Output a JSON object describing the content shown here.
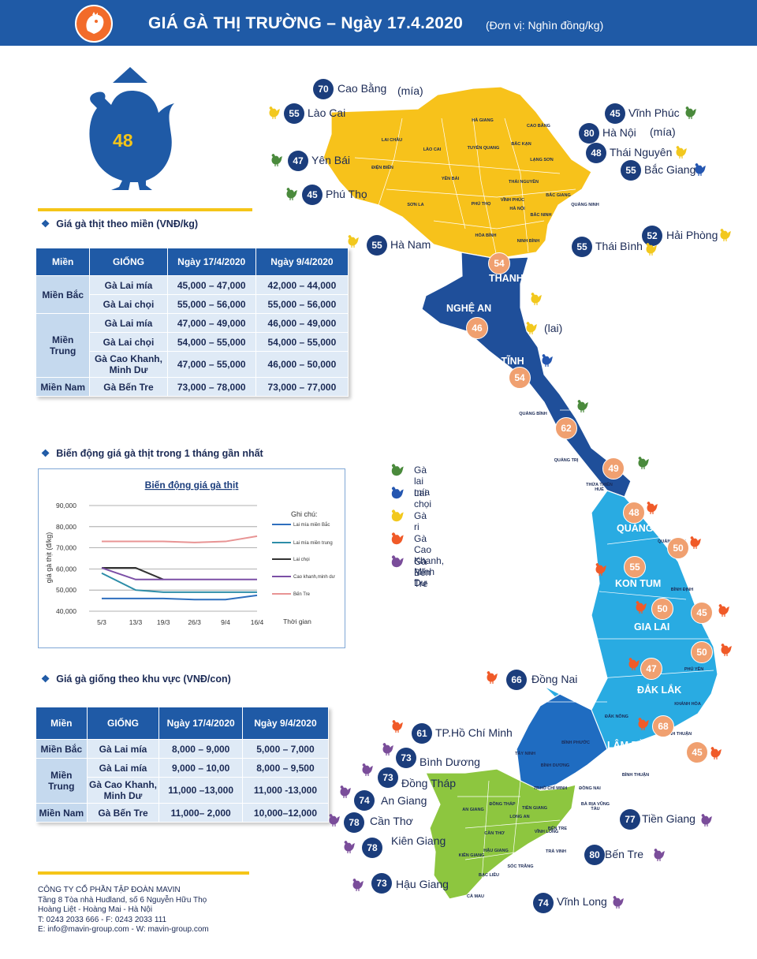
{
  "header": {
    "title": "GIÁ GÀ THỊ TRƯỜNG – Ngày 17.4.2020",
    "unit": "(Đơn vị: Nghìn đồng/kg)",
    "national_price": "48"
  },
  "sections": {
    "meat_by_region": "Giá gà thịt theo miền (VNĐ/kg)",
    "trend": "Biến động giá gà thịt trong 1 tháng gần nhất",
    "breed_by_region": "Giá gà giống theo khu vực (VNĐ/con)"
  },
  "table1": {
    "headers": [
      "Miền",
      "GIỐNG",
      "Ngày 17/4/2020",
      "Ngày 9/4/2020"
    ],
    "regions": [
      {
        "name": "Miền Bắc",
        "rows": [
          {
            "breed": "Gà Lai mía",
            "d1": "45,000 – 47,000",
            "d2": "42,000 – 44,000"
          },
          {
            "breed": "Gà Lai chọi",
            "d1": "55,000 – 56,000",
            "d2": "55,000 – 56,000"
          }
        ]
      },
      {
        "name": "Miền Trung",
        "rows": [
          {
            "breed": "Gà Lai mía",
            "d1": "47,000 – 49,000",
            "d2": "46,000 – 49,000"
          },
          {
            "breed": "Gà Lai chọi",
            "d1": "54,000 – 55,000",
            "d2": "54,000 – 55,000"
          },
          {
            "breed": "Gà Cao Khanh, Minh Dư",
            "d1": "47,000 – 55,000",
            "d2": "46,000 – 50,000"
          }
        ]
      },
      {
        "name": "Miền Nam",
        "rows": [
          {
            "breed": "Gà Bến Tre",
            "d1": "73,000 – 78,000",
            "d2": "73,000 – 77,000"
          }
        ]
      }
    ]
  },
  "table2": {
    "headers": [
      "Miền",
      "GIỐNG",
      "Ngày 17/4/2020",
      "Ngày 9/4/2020"
    ],
    "regions": [
      {
        "name": "Miền Bắc",
        "rows": [
          {
            "breed": "Gà Lai mía",
            "d1": "8,000 – 9,000",
            "d2": "5,000 – 7,000"
          }
        ]
      },
      {
        "name": "Miền Trung",
        "rows": [
          {
            "breed": "Gà Lai mía",
            "d1": "9,000 – 10,00",
            "d2": "8,000 – 9,500"
          },
          {
            "breed": "Gà Cao Khanh, Minh Dư",
            "d1": "11,000 –13,000",
            "d2": "11,000 -13,000"
          }
        ]
      },
      {
        "name": "Miền Nam",
        "rows": [
          {
            "breed": "Gà Bến Tre",
            "d1": "11,000– 2,000",
            "d2": "10,000–12,000"
          }
        ]
      }
    ]
  },
  "chart_data": {
    "type": "line",
    "title": "Biến động giá gà thịt",
    "xlabel": "Thời gian",
    "ylabel": "giá gà thịt (đ/kg)",
    "legend_title": "Ghi chú:",
    "legend_position": "right",
    "categories": [
      "5/3",
      "13/3",
      "19/3",
      "26/3",
      "9/4",
      "16/4"
    ],
    "yticks": [
      "40,000",
      "50,000",
      "60,000",
      "70,000",
      "80,000",
      "90,000"
    ],
    "ylim": [
      40000,
      90000
    ],
    "grid": true,
    "x_pos": [
      0,
      1.44,
      2.62,
      3.94,
      5.26,
      6.6
    ],
    "series": [
      {
        "name": "Lai mía miền Bắc",
        "color": "#2f6fbe",
        "x": [
          0,
          1.44,
          2.62,
          3.94,
          5.26,
          6.6
        ],
        "values": [
          46000,
          46000,
          46000,
          45500,
          45500,
          47500
        ]
      },
      {
        "name": "Lai mía miền trung",
        "color": "#2d8da8",
        "x": [
          0,
          1.44,
          2.62,
          3.94,
          5.26,
          6.6
        ],
        "values": [
          58000,
          50000,
          49000,
          49000,
          49000,
          49000
        ]
      },
      {
        "name": "Lai chọi",
        "color": "#333333",
        "x": [
          0,
          1.44,
          2.62
        ],
        "values": [
          60500,
          60500,
          55000
        ]
      },
      {
        "name": "Cao khanh,minh dư",
        "color": "#7b4fa6",
        "x": [
          0,
          1.44,
          2.62,
          3.94,
          5.26,
          6.6
        ],
        "values": [
          60500,
          55000,
          55000,
          55000,
          55000,
          55000
        ]
      },
      {
        "name": "Bến Tre",
        "color": "#e89494",
        "x": [
          0,
          1.44,
          2.62,
          3.94,
          5.26,
          6.6
        ],
        "values": [
          73000,
          73000,
          73000,
          72500,
          73000,
          75500
        ]
      }
    ]
  },
  "map": {
    "north_prices": [
      {
        "v": "70",
        "label": "Cao Bằng",
        "note": "(mía)"
      },
      {
        "v": "55",
        "label": "Lào Cai"
      },
      {
        "v": "45",
        "label": "Vĩnh Phúc"
      },
      {
        "v": "80",
        "label": "Hà Nội",
        "note": "(mía)"
      },
      {
        "v": "48",
        "label": "Thái Nguyên"
      },
      {
        "v": "55",
        "label": "Bắc Giang"
      },
      {
        "v": "47",
        "label": "Yên Bái"
      },
      {
        "v": "45",
        "label": "Phú Thọ"
      },
      {
        "v": "52",
        "label": "Hải Phòng"
      },
      {
        "v": "55",
        "label": "Hà Nam"
      },
      {
        "v": "55",
        "label": "Thái Bình"
      }
    ],
    "south_prices": [
      {
        "v": "66",
        "label": "Đồng Nai"
      },
      {
        "v": "61",
        "label": "TP.Hồ Chí Minh"
      },
      {
        "v": "73",
        "label": "Bình Dương"
      },
      {
        "v": "73",
        "label": "Đồng Tháp"
      },
      {
        "v": "74",
        "label": "An Giang"
      },
      {
        "v": "78",
        "label": "Cần Thơ"
      },
      {
        "v": "78",
        "label": "Kiên Giang"
      },
      {
        "v": "77",
        "label": "Tiền Giang"
      },
      {
        "v": "80",
        "label": "Bến Tre"
      },
      {
        "v": "73",
        "label": "Hậu Giang"
      },
      {
        "v": "74",
        "label": "Vĩnh Long"
      }
    ],
    "central_prices": [
      "54",
      "46",
      "54",
      "62",
      "49",
      "48",
      "50",
      "55",
      "50",
      "45",
      "50",
      "47",
      "68",
      "45"
    ],
    "central_names": [
      "THANH HÓA",
      "NGHỆ AN",
      "HÀ TĨNH",
      "QUẢNG NAM",
      "KON TUM",
      "GIA LAI",
      "ĐẮK LẮK",
      "LÂM ĐỒNG"
    ],
    "small_province_names": [
      "HÀ GIANG",
      "CAO BẰNG",
      "LAI CHÂU",
      "LÀO CAI",
      "TUYÊN QUANG",
      "BẮC KẠN",
      "LẠNG SƠN",
      "ĐIỆN BIÊN",
      "YÊN BÁI",
      "SƠN LA",
      "PHÚ THỌ",
      "VĨNH PHÚC",
      "HÀ NỘI",
      "BẮC NINH",
      "HÒA BÌNH",
      "NINH BÌNH",
      "THÁI NGUYÊN",
      "BẮC GIANG",
      "QUẢNG NINH",
      "QUẢNG BÌNH",
      "QUẢNG TRỊ",
      "THỪA THIÊN HUẾ",
      "QUẢNG NGÃI",
      "BÌNH ĐỊNH",
      "PHÚ YÊN",
      "KHÁNH HÒA",
      "NINH THUẬN",
      "BÌNH THUẬN",
      "ĐẮK NÔNG",
      "BÌNH PHƯỚC",
      "TÂY NINH",
      "BÌNH DƯƠNG",
      "ĐỒNG NAI",
      "LONG AN",
      "TIỀN GIANG",
      "VĨNH LONG",
      "TRÀ VINH",
      "SÓC TRĂNG",
      "BẠC LIÊU",
      "CÀ MAU",
      "HẬU GIANG",
      "CẦN THƠ",
      "AN GIANG",
      "KIÊN GIANG",
      "ĐỒNG THÁP",
      "BẾN TRE",
      "BÀ RỊA VŨNG TÀU",
      "TP.HỒ CHÍ MINH"
    ],
    "lai_note": "(lai)"
  },
  "legend": [
    {
      "label": "Gà lai mía",
      "color": "#4a8a3c"
    },
    {
      "label": "Lai chọi",
      "color": "#2456b0"
    },
    {
      "label": "Gà ri",
      "color": "#f2c81e"
    },
    {
      "label": "Gà Cao Khanh, Minh Dư",
      "color": "#f05a28"
    },
    {
      "label": "Gà Bến Tre",
      "color": "#7a4d9a"
    }
  ],
  "footer": {
    "company": "CÔNG TY CỔ PHẦN TẬP ĐOÀN MAVIN",
    "address1": "Tầng 8 Tòa nhà Hudland, số 6 Nguyễn Hữu Thọ",
    "address2": "Hoàng Liệt - Hoàng Mai - Hà Nội",
    "phone": "T: 0243 2033 666 - F: 0243 2033 111",
    "email": "E: info@mavin-group.com - W: mavin-group.com"
  }
}
